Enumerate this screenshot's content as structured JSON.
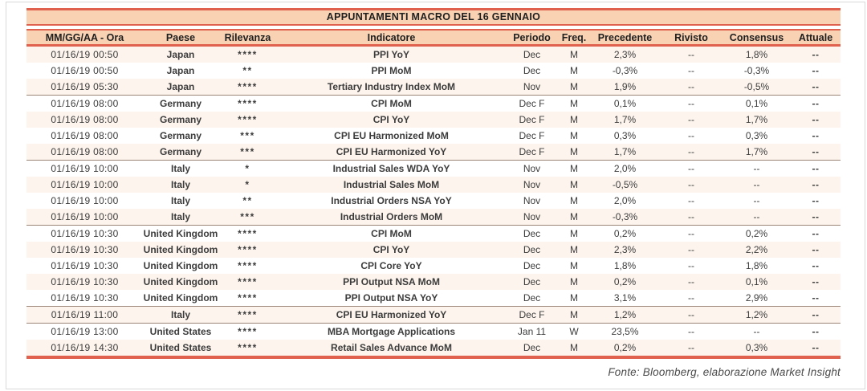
{
  "title": "APPUNTAMENTI MACRO DEL 16 GENNAIO",
  "footer": "Fonte: Bloomberg, elaborazione Market Insight",
  "colors": {
    "band_background": "#F8D2B2",
    "accent_border": "#E0614D",
    "group_separator": "#9B8576",
    "relevance_stars": "#D96B59",
    "row_alternate": "#FDF4ED"
  },
  "table": {
    "columns": [
      {
        "key": "datetime",
        "label": "MM/GG/AA - Ora"
      },
      {
        "key": "country",
        "label": "Paese"
      },
      {
        "key": "relevance",
        "label": "Rilevanza"
      },
      {
        "key": "indicator",
        "label": "Indicatore"
      },
      {
        "key": "period",
        "label": "Periodo"
      },
      {
        "key": "freq",
        "label": "Freq."
      },
      {
        "key": "previous",
        "label": "Precedente"
      },
      {
        "key": "revised",
        "label": "Rivisto"
      },
      {
        "key": "consensus",
        "label": "Consensus"
      },
      {
        "key": "actual",
        "label": "Attuale"
      }
    ],
    "rows": [
      {
        "datetime": "01/16/19 00:50",
        "country": "Japan",
        "relevance": "****",
        "indicator": "PPI YoY",
        "period": "Dec",
        "freq": "M",
        "previous": "2,3%",
        "revised": "--",
        "consensus": "1,8%",
        "actual": "--",
        "group_end": false
      },
      {
        "datetime": "01/16/19 00:50",
        "country": "Japan",
        "relevance": "**",
        "indicator": "PPI MoM",
        "period": "Dec",
        "freq": "M",
        "previous": "-0,3%",
        "revised": "--",
        "consensus": "-0,3%",
        "actual": "--",
        "group_end": false
      },
      {
        "datetime": "01/16/19 05:30",
        "country": "Japan",
        "relevance": "****",
        "indicator": "Tertiary Industry Index MoM",
        "period": "Nov",
        "freq": "M",
        "previous": "1,9%",
        "revised": "--",
        "consensus": "-0,5%",
        "actual": "--",
        "group_end": true
      },
      {
        "datetime": "01/16/19 08:00",
        "country": "Germany",
        "relevance": "****",
        "indicator": "CPI MoM",
        "period": "Dec F",
        "freq": "M",
        "previous": "0,1%",
        "revised": "--",
        "consensus": "0,1%",
        "actual": "--",
        "group_end": false
      },
      {
        "datetime": "01/16/19 08:00",
        "country": "Germany",
        "relevance": "****",
        "indicator": "CPI YoY",
        "period": "Dec F",
        "freq": "M",
        "previous": "1,7%",
        "revised": "--",
        "consensus": "1,7%",
        "actual": "--",
        "group_end": false
      },
      {
        "datetime": "01/16/19 08:00",
        "country": "Germany",
        "relevance": "***",
        "indicator": "CPI EU Harmonized MoM",
        "period": "Dec F",
        "freq": "M",
        "previous": "0,3%",
        "revised": "--",
        "consensus": "0,3%",
        "actual": "--",
        "group_end": false
      },
      {
        "datetime": "01/16/19 08:00",
        "country": "Germany",
        "relevance": "***",
        "indicator": "CPI EU Harmonized YoY",
        "period": "Dec F",
        "freq": "M",
        "previous": "1,7%",
        "revised": "--",
        "consensus": "1,7%",
        "actual": "--",
        "group_end": true
      },
      {
        "datetime": "01/16/19 10:00",
        "country": "Italy",
        "relevance": "*",
        "indicator": "Industrial Sales WDA YoY",
        "period": "Nov",
        "freq": "M",
        "previous": "2,0%",
        "revised": "--",
        "consensus": "--",
        "actual": "--",
        "group_end": false
      },
      {
        "datetime": "01/16/19 10:00",
        "country": "Italy",
        "relevance": "*",
        "indicator": "Industrial Sales MoM",
        "period": "Nov",
        "freq": "M",
        "previous": "-0,5%",
        "revised": "--",
        "consensus": "--",
        "actual": "--",
        "group_end": false
      },
      {
        "datetime": "01/16/19 10:00",
        "country": "Italy",
        "relevance": "**",
        "indicator": "Industrial Orders NSA YoY",
        "period": "Nov",
        "freq": "M",
        "previous": "2,0%",
        "revised": "--",
        "consensus": "--",
        "actual": "--",
        "group_end": false
      },
      {
        "datetime": "01/16/19 10:00",
        "country": "Italy",
        "relevance": "***",
        "indicator": "Industrial Orders MoM",
        "period": "Nov",
        "freq": "M",
        "previous": "-0,3%",
        "revised": "--",
        "consensus": "--",
        "actual": "--",
        "group_end": true
      },
      {
        "datetime": "01/16/19 10:30",
        "country": "United Kingdom",
        "relevance": "****",
        "indicator": "CPI MoM",
        "period": "Dec",
        "freq": "M",
        "previous": "0,2%",
        "revised": "--",
        "consensus": "0,2%",
        "actual": "--",
        "group_end": false
      },
      {
        "datetime": "01/16/19 10:30",
        "country": "United Kingdom",
        "relevance": "****",
        "indicator": "CPI YoY",
        "period": "Dec",
        "freq": "M",
        "previous": "2,3%",
        "revised": "--",
        "consensus": "2,2%",
        "actual": "--",
        "group_end": false
      },
      {
        "datetime": "01/16/19 10:30",
        "country": "United Kingdom",
        "relevance": "****",
        "indicator": "CPI Core YoY",
        "period": "Dec",
        "freq": "M",
        "previous": "1,8%",
        "revised": "--",
        "consensus": "1,8%",
        "actual": "--",
        "group_end": false
      },
      {
        "datetime": "01/16/19 10:30",
        "country": "United Kingdom",
        "relevance": "****",
        "indicator": "PPI Output NSA MoM",
        "period": "Dec",
        "freq": "M",
        "previous": "0,2%",
        "revised": "--",
        "consensus": "0,1%",
        "actual": "--",
        "group_end": false
      },
      {
        "datetime": "01/16/19 10:30",
        "country": "United Kingdom",
        "relevance": "****",
        "indicator": "PPI Output NSA YoY",
        "period": "Dec",
        "freq": "M",
        "previous": "3,1%",
        "revised": "--",
        "consensus": "2,9%",
        "actual": "--",
        "group_end": true
      },
      {
        "datetime": "01/16/19 11:00",
        "country": "Italy",
        "relevance": "****",
        "indicator": "CPI EU Harmonized YoY",
        "period": "Dec F",
        "freq": "M",
        "previous": "1,2%",
        "revised": "--",
        "consensus": "1,2%",
        "actual": "--",
        "group_end": true
      },
      {
        "datetime": "01/16/19 13:00",
        "country": "United States",
        "relevance": "****",
        "indicator": "MBA Mortgage Applications",
        "period": "Jan 11",
        "freq": "W",
        "previous": "23,5%",
        "revised": "--",
        "consensus": "--",
        "actual": "--",
        "group_end": false
      },
      {
        "datetime": "01/16/19 14:30",
        "country": "United States",
        "relevance": "****",
        "indicator": "Retail Sales Advance MoM",
        "period": "Dec",
        "freq": "M",
        "previous": "0,2%",
        "revised": "--",
        "consensus": "0,3%",
        "actual": "--",
        "group_end": false
      }
    ]
  }
}
